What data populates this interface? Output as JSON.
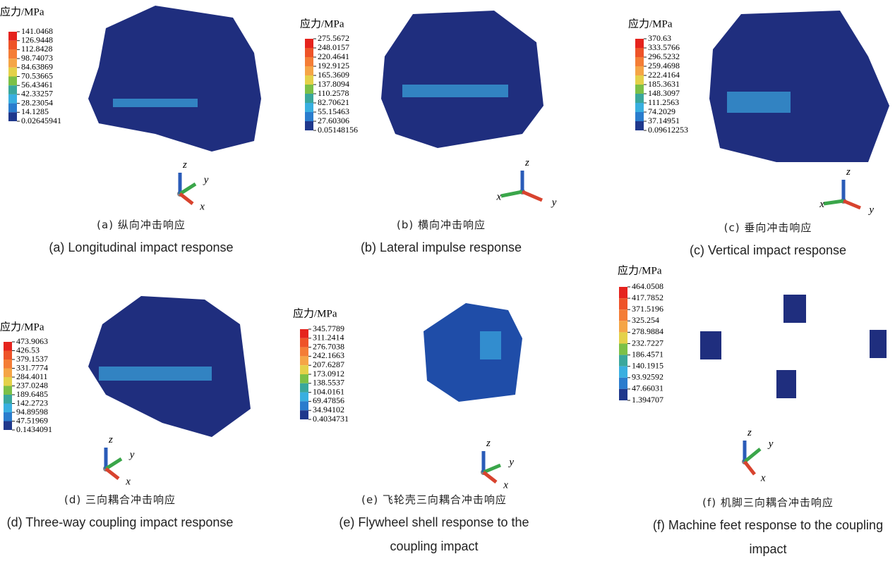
{
  "panels": [
    {
      "legend_title": "应力/MPa",
      "legend_values": [
        "141.0468",
        "126.9448",
        "112.8428",
        "98.74073",
        "84.63869",
        "70.53665",
        "56.43461",
        "42.33257",
        "28.23054",
        "14.1285",
        "0.02645941"
      ],
      "axes": [
        "z",
        "y",
        "x"
      ],
      "caption_cn": "(a) 纵向冲击响应",
      "caption_en": "(a) Longitudinal impact response"
    },
    {
      "legend_title": "应力/MPa",
      "legend_values": [
        "275.5672",
        "248.0157",
        "220.4641",
        "192.9125",
        "165.3609",
        "137.8094",
        "110.2578",
        "82.70621",
        "55.15463",
        "27.60306",
        "0.05148156"
      ],
      "axes": [
        "z",
        "x",
        "y"
      ],
      "caption_cn": "(b) 横向冲击响应",
      "caption_en": "(b) Lateral impulse response"
    },
    {
      "legend_title": "应力/MPa",
      "legend_values": [
        "370.63",
        "333.5766",
        "296.5232",
        "259.4698",
        "222.4164",
        "185.3631",
        "148.3097",
        "111.2563",
        "74.2029",
        "37.14951",
        "0.09612253"
      ],
      "axes": [
        "z",
        "x",
        "y"
      ],
      "caption_cn": "(c) 垂向冲击响应",
      "caption_en": "(c) Vertical impact response"
    },
    {
      "legend_title": "应力/MPa",
      "legend_values": [
        "473.9063",
        "426.53",
        "379.1537",
        "331.7774",
        "284.4011",
        "237.0248",
        "189.6485",
        "142.2723",
        "94.89598",
        "47.51969",
        "0.1434091"
      ],
      "axes": [
        "z",
        "y",
        "x"
      ],
      "caption_cn": "(d) 三向耦合冲击响应",
      "caption_en": "(d) Three-way coupling impact response"
    },
    {
      "legend_title": "应力/MPa",
      "legend_values": [
        "345.7789",
        "311.2414",
        "276.7038",
        "242.1663",
        "207.6287",
        "173.0912",
        "138.5537",
        "104.0161",
        "69.47856",
        "34.94102",
        "0.4034731"
      ],
      "axes": [
        "z",
        "y",
        "x"
      ],
      "caption_cn": "(e) 飞轮壳三向耦合冲击响应",
      "caption_en": "(e) Flywheel shell response to the coupling impact"
    },
    {
      "legend_title": "应力/MPa",
      "legend_values": [
        "464.0508",
        "417.7852",
        "371.5196",
        "325.254",
        "278.9884",
        "232.7227",
        "186.4571",
        "140.1915",
        "93.92592",
        "47.66031",
        "1.394707"
      ],
      "axes": [
        "z",
        "y",
        "x"
      ],
      "caption_cn": "(f) 机脚三向耦合冲击响应",
      "caption_en": "(f) Machine feet response to the coupling impact"
    }
  ]
}
